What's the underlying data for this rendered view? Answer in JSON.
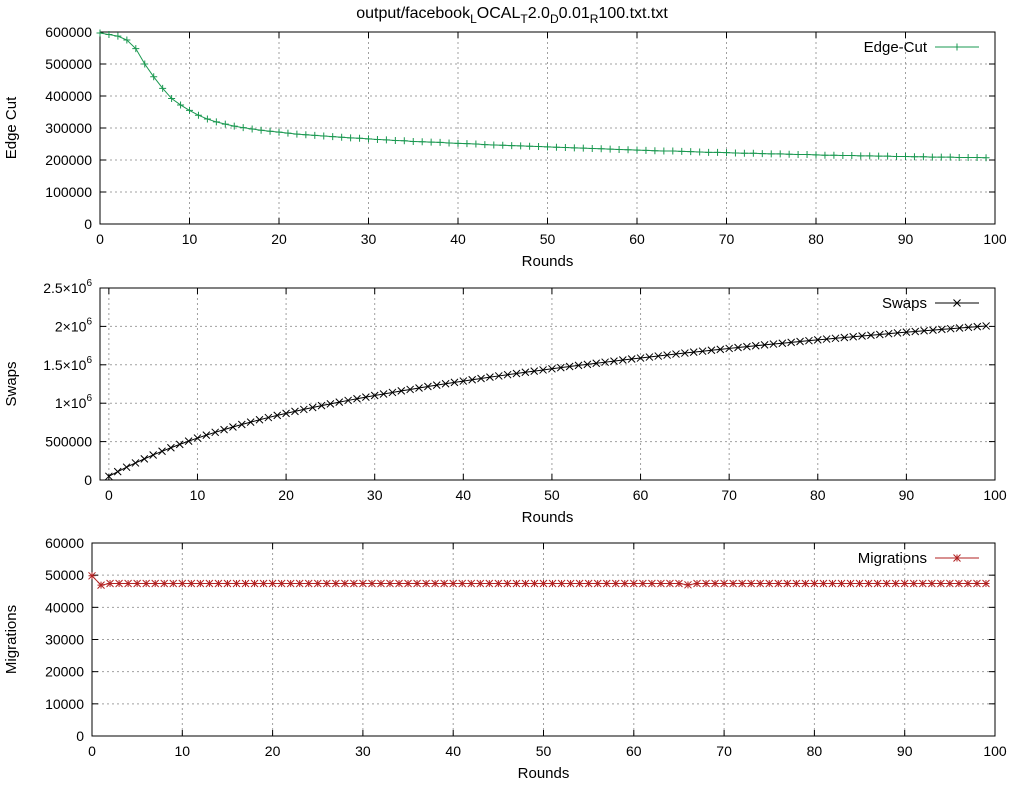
{
  "title": {
    "parts": [
      {
        "text": "output/facebook",
        "shift": "none"
      },
      {
        "text": "L",
        "shift": "sub"
      },
      {
        "text": "OCAL",
        "shift": "none"
      },
      {
        "text": "T",
        "shift": "sub"
      },
      {
        "text": "2.0",
        "shift": "none"
      },
      {
        "text": "D",
        "shift": "sub"
      },
      {
        "text": "0.01",
        "shift": "none"
      },
      {
        "text": "R",
        "shift": "sub"
      },
      {
        "text": "100.txt.txt",
        "shift": "none"
      }
    ]
  },
  "chart_data": [
    {
      "type": "line",
      "xlabel": "Rounds",
      "ylabel": "Edge Cut",
      "xlim": [
        0,
        100
      ],
      "ylim": [
        0,
        600000
      ],
      "xticks": [
        0,
        10,
        20,
        30,
        40,
        50,
        60,
        70,
        80,
        90,
        100
      ],
      "yticks": [
        {
          "value": 0,
          "label": "0"
        },
        {
          "value": 100000,
          "label": "100000"
        },
        {
          "value": 200000,
          "label": "200000"
        },
        {
          "value": 300000,
          "label": "300000"
        },
        {
          "value": 400000,
          "label": "400000"
        },
        {
          "value": 500000,
          "label": "500000"
        },
        {
          "value": 600000,
          "label": "600000"
        }
      ],
      "grid": true,
      "legend_position": "top-right",
      "series": [
        {
          "name": "Edge-Cut",
          "color": "#1a9850",
          "marker": "plus",
          "x": [
            0,
            1,
            2,
            3,
            4,
            5,
            6,
            7,
            8,
            9,
            10,
            11,
            12,
            13,
            14,
            15,
            16,
            17,
            18,
            19,
            20,
            21,
            22,
            23,
            24,
            25,
            26,
            27,
            28,
            29,
            30,
            31,
            32,
            33,
            34,
            35,
            36,
            37,
            38,
            39,
            40,
            41,
            42,
            43,
            44,
            45,
            46,
            47,
            48,
            49,
            50,
            51,
            52,
            53,
            54,
            55,
            56,
            57,
            58,
            59,
            60,
            61,
            62,
            63,
            64,
            65,
            66,
            67,
            68,
            69,
            70,
            71,
            72,
            73,
            74,
            75,
            76,
            77,
            78,
            79,
            80,
            81,
            82,
            83,
            84,
            85,
            86,
            87,
            88,
            89,
            90,
            91,
            92,
            93,
            94,
            95,
            96,
            97,
            98,
            99
          ],
          "y": [
            597000,
            592000,
            587000,
            575000,
            548000,
            500000,
            460000,
            424000,
            392000,
            372000,
            355000,
            340000,
            328000,
            319000,
            312000,
            306000,
            301000,
            297000,
            293000,
            290000,
            287000,
            284000,
            281000,
            279000,
            277000,
            275000,
            273000,
            271000,
            269000,
            268000,
            266000,
            264000,
            263000,
            261000,
            260000,
            258000,
            257000,
            256000,
            255000,
            253000,
            252000,
            251000,
            250000,
            248000,
            247000,
            246000,
            245000,
            244000,
            243000,
            242000,
            241000,
            240000,
            239000,
            238000,
            237000,
            236000,
            235000,
            234000,
            233000,
            232000,
            231000,
            230000,
            229000,
            228000,
            228000,
            227000,
            226000,
            225000,
            224000,
            224000,
            223000,
            222000,
            221000,
            221000,
            220000,
            219000,
            219000,
            218000,
            217000,
            217000,
            216000,
            215000,
            215000,
            214000,
            214000,
            213000,
            213000,
            212000,
            212000,
            211000,
            211000,
            210000,
            210000,
            209000,
            209000,
            209000,
            208000,
            208000,
            208000,
            207000
          ]
        }
      ]
    },
    {
      "type": "line",
      "xlabel": "Rounds",
      "ylabel": "Swaps",
      "xlim": [
        -1,
        100
      ],
      "ylim": [
        0,
        2500000
      ],
      "xticks": [
        0,
        10,
        20,
        30,
        40,
        50,
        60,
        70,
        80,
        90,
        100
      ],
      "yticks": [
        {
          "value": 0,
          "label": "0",
          "sup": ""
        },
        {
          "value": 500000,
          "label": "500000",
          "sup": ""
        },
        {
          "value": 1000000,
          "label": "1×10",
          "sup": "6"
        },
        {
          "value": 1500000,
          "label": "1.5×10",
          "sup": "6"
        },
        {
          "value": 2000000,
          "label": "2×10",
          "sup": "6"
        },
        {
          "value": 2500000,
          "label": "2.5×10",
          "sup": "6"
        }
      ],
      "grid": true,
      "legend_position": "top-right",
      "series": [
        {
          "name": "Swaps",
          "color": "#000000",
          "marker": "cross",
          "x": [
            0,
            1,
            2,
            3,
            4,
            5,
            6,
            7,
            8,
            9,
            10,
            11,
            12,
            13,
            14,
            15,
            16,
            17,
            18,
            19,
            20,
            21,
            22,
            23,
            24,
            25,
            26,
            27,
            28,
            29,
            30,
            31,
            32,
            33,
            34,
            35,
            36,
            37,
            38,
            39,
            40,
            41,
            42,
            43,
            44,
            45,
            46,
            47,
            48,
            49,
            50,
            51,
            52,
            53,
            54,
            55,
            56,
            57,
            58,
            59,
            60,
            61,
            62,
            63,
            64,
            65,
            66,
            67,
            68,
            69,
            70,
            71,
            72,
            73,
            74,
            75,
            76,
            77,
            78,
            79,
            80,
            81,
            82,
            83,
            84,
            85,
            86,
            87,
            88,
            89,
            90,
            91,
            92,
            93,
            94,
            95,
            96,
            97,
            98,
            99
          ],
          "y": [
            48000,
            109000,
            167000,
            222000,
            275000,
            326000,
            374000,
            420000,
            464000,
            506000,
            546000,
            584000,
            621000,
            656000,
            690000,
            723000,
            754000,
            784000,
            813000,
            841000,
            868000,
            894000,
            919000,
            944000,
            968000,
            991000,
            1014000,
            1036000,
            1058000,
            1079000,
            1100000,
            1120000,
            1140000,
            1160000,
            1179000,
            1198000,
            1217000,
            1235000,
            1253000,
            1271000,
            1288000,
            1305000,
            1322000,
            1339000,
            1355000,
            1371000,
            1387000,
            1403000,
            1418000,
            1433000,
            1448000,
            1463000,
            1478000,
            1492000,
            1506000,
            1520000,
            1534000,
            1548000,
            1562000,
            1575000,
            1588000,
            1601000,
            1614000,
            1627000,
            1640000,
            1653000,
            1665000,
            1677000,
            1689000,
            1701000,
            1713000,
            1725000,
            1737000,
            1748000,
            1759000,
            1770000,
            1781000,
            1792000,
            1803000,
            1814000,
            1825000,
            1835000,
            1845000,
            1855000,
            1865000,
            1875000,
            1885000,
            1895000,
            1905000,
            1915000,
            1925000,
            1934000,
            1943000,
            1952000,
            1961000,
            1970000,
            1979000,
            1988000,
            1997000,
            2006000
          ]
        }
      ]
    },
    {
      "type": "line",
      "xlabel": "Rounds",
      "ylabel": "Migrations",
      "xlim": [
        0,
        100
      ],
      "ylim": [
        0,
        60000
      ],
      "xticks": [
        0,
        10,
        20,
        30,
        40,
        50,
        60,
        70,
        80,
        90,
        100
      ],
      "yticks": [
        {
          "value": 0,
          "label": "0"
        },
        {
          "value": 10000,
          "label": "10000"
        },
        {
          "value": 20000,
          "label": "20000"
        },
        {
          "value": 30000,
          "label": "30000"
        },
        {
          "value": 40000,
          "label": "40000"
        },
        {
          "value": 50000,
          "label": "50000"
        },
        {
          "value": 60000,
          "label": "60000"
        }
      ],
      "grid": true,
      "legend_position": "top-right",
      "series": [
        {
          "name": "Migrations",
          "color": "#b22222",
          "marker": "star",
          "x": [
            0,
            1,
            2,
            3,
            4,
            5,
            6,
            7,
            8,
            9,
            10,
            11,
            12,
            13,
            14,
            15,
            16,
            17,
            18,
            19,
            20,
            21,
            22,
            23,
            24,
            25,
            26,
            27,
            28,
            29,
            30,
            31,
            32,
            33,
            34,
            35,
            36,
            37,
            38,
            39,
            40,
            41,
            42,
            43,
            44,
            45,
            46,
            47,
            48,
            49,
            50,
            51,
            52,
            53,
            54,
            55,
            56,
            57,
            58,
            59,
            60,
            61,
            62,
            63,
            64,
            65,
            66,
            67,
            68,
            69,
            70,
            71,
            72,
            73,
            74,
            75,
            76,
            77,
            78,
            79,
            80,
            81,
            82,
            83,
            84,
            85,
            86,
            87,
            88,
            89,
            90,
            91,
            92,
            93,
            94,
            95,
            96,
            97,
            98,
            99
          ],
          "y": [
            49800,
            46900,
            47400,
            47400,
            47400,
            47400,
            47400,
            47400,
            47400,
            47400,
            47400,
            47400,
            47400,
            47400,
            47400,
            47400,
            47400,
            47400,
            47400,
            47400,
            47400,
            47400,
            47400,
            47400,
            47400,
            47400,
            47400,
            47400,
            47400,
            47400,
            47400,
            47400,
            47400,
            47400,
            47400,
            47400,
            47400,
            47400,
            47400,
            47400,
            47400,
            47400,
            47400,
            47400,
            47400,
            47400,
            47400,
            47400,
            47400,
            47400,
            47400,
            47400,
            47400,
            47400,
            47400,
            47400,
            47400,
            47400,
            47400,
            47400,
            47400,
            47400,
            47400,
            47400,
            47400,
            47400,
            47000,
            47400,
            47400,
            47400,
            47400,
            47400,
            47400,
            47400,
            47400,
            47400,
            47400,
            47400,
            47400,
            47400,
            47400,
            47400,
            47400,
            47400,
            47400,
            47400,
            47400,
            47400,
            47400,
            47400,
            47400,
            47400,
            47400,
            47400,
            47400,
            47400,
            47400,
            47400,
            47400,
            47400
          ]
        }
      ]
    }
  ]
}
